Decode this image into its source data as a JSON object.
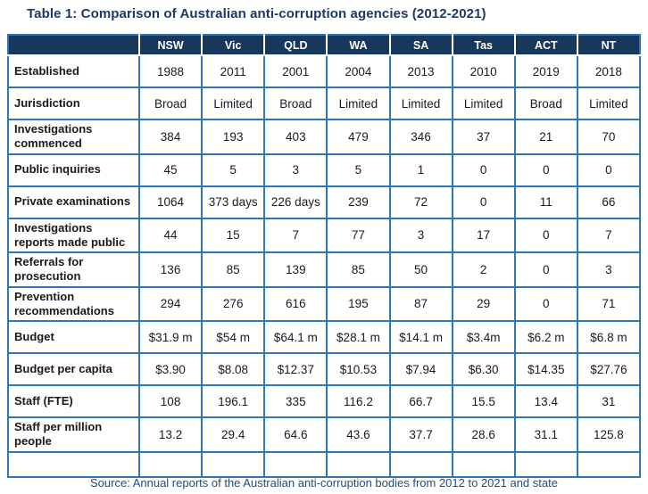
{
  "page": {
    "title": "Table 1: Comparison of Australian anti-corruption agencies (2012-2021)",
    "source_note": "Source: Annual reports of the Australian anti-corruption bodies from 2012 to 2021 and state"
  },
  "colors": {
    "header_bg": "#17375D",
    "border_blue": "#2E75B6",
    "title_navy": "#1F3864",
    "source_blue": "#1F4E79"
  },
  "table": {
    "row_header_label": "",
    "columns": [
      "NSW",
      "Vic",
      "QLD",
      "WA",
      "SA",
      "Tas",
      "ACT",
      "NT"
    ],
    "rows": [
      {
        "label": "Established",
        "values": [
          "1988",
          "2011",
          "2001",
          "2004",
          "2013",
          "2010",
          "2019",
          "2018"
        ]
      },
      {
        "label": "Jurisdiction",
        "values": [
          "Broad",
          "Limited",
          "Broad",
          "Limited",
          "Limited",
          "Limited",
          "Broad",
          "Limited"
        ]
      },
      {
        "label": "Investigations commenced",
        "values": [
          "384",
          "193",
          "403",
          "479",
          "346",
          "37",
          "21",
          "70"
        ]
      },
      {
        "label": "Public inquiries",
        "values": [
          "45",
          "5",
          "3",
          "5",
          "1",
          "0",
          "0",
          "0"
        ]
      },
      {
        "label": "Private examinations",
        "values": [
          "1064",
          "373 days",
          "226 days",
          "239",
          "72",
          "0",
          "11",
          "66"
        ]
      },
      {
        "label": "Investigations reports made public",
        "values": [
          "44",
          "15",
          "7",
          "77",
          "3",
          "17",
          "0",
          "7"
        ]
      },
      {
        "label": "Referrals for prosecution",
        "values": [
          "136",
          "85",
          "139",
          "85",
          "50",
          "2",
          "0",
          "3"
        ]
      },
      {
        "label": "Prevention recommendations",
        "values": [
          "294",
          "276",
          "616",
          "195",
          "87",
          "29",
          "0",
          "71"
        ]
      },
      {
        "label": "Budget",
        "values": [
          "$31.9 m",
          "$54 m",
          "$64.1 m",
          "$28.1 m",
          "$14.1 m",
          "$3.4m",
          "$6.2 m",
          "$6.8 m"
        ]
      },
      {
        "label": "Budget per capita",
        "values": [
          "$3.90",
          "$8.08",
          "$12.37",
          "$10.53",
          "$7.94",
          "$6.30",
          "$14.35",
          "$27.76"
        ]
      },
      {
        "label": "Staff (FTE)",
        "values": [
          "108",
          "196.1",
          "335",
          "116.2",
          "66.7",
          "15.5",
          "13.4",
          "31"
        ]
      },
      {
        "label": "Staff per million people",
        "values": [
          "13.2",
          "29.4",
          "64.6",
          "43.6",
          "37.7",
          "28.6",
          "31.1",
          "125.8"
        ]
      },
      {
        "label": "",
        "values": [
          "",
          "",
          "",
          "",
          "",
          "",
          "",
          ""
        ]
      }
    ]
  }
}
